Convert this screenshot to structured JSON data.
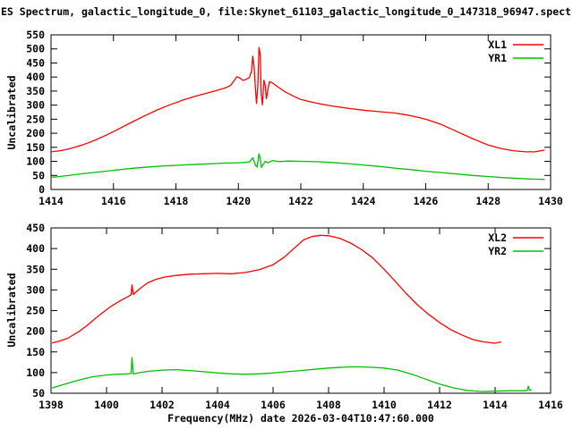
{
  "title": "ES Spectrum, galactic_longitude_0, file:Skynet_61103_galactic_longitude_0_147318_96947.spect",
  "xlabel": "Frequency(MHz) date 2026-03-04T10:47:60.000",
  "background_color": "#ffffff",
  "axis_color": "#000000",
  "chart_data": [
    {
      "type": "line",
      "ylabel": "Uncalibrated",
      "xlim": [
        1414,
        1430
      ],
      "ylim": [
        0,
        550
      ],
      "xticks": [
        1414,
        1416,
        1418,
        1420,
        1422,
        1424,
        1426,
        1428,
        1430
      ],
      "yticks": [
        0,
        50,
        100,
        150,
        200,
        250,
        300,
        350,
        400,
        450,
        500,
        550
      ],
      "grid": false,
      "legend_position": "top-right",
      "series": [
        {
          "name": "XL1",
          "color": "#ff0000",
          "points": [
            [
              1414.0,
              134
            ],
            [
              1414.3,
              138
            ],
            [
              1414.6,
              145
            ],
            [
              1415.0,
              158
            ],
            [
              1415.4,
              175
            ],
            [
              1415.8,
              195
            ],
            [
              1416.2,
              217
            ],
            [
              1416.6,
              240
            ],
            [
              1417.0,
              262
            ],
            [
              1417.4,
              283
            ],
            [
              1417.8,
              301
            ],
            [
              1418.2,
              317
            ],
            [
              1418.6,
              331
            ],
            [
              1419.0,
              343
            ],
            [
              1419.3,
              352
            ],
            [
              1419.6,
              362
            ],
            [
              1419.75,
              370
            ],
            [
              1419.85,
              385
            ],
            [
              1419.95,
              401
            ],
            [
              1420.05,
              396
            ],
            [
              1420.15,
              388
            ],
            [
              1420.25,
              392
            ],
            [
              1420.35,
              398
            ],
            [
              1420.42,
              420
            ],
            [
              1420.46,
              474
            ],
            [
              1420.5,
              440
            ],
            [
              1420.54,
              368
            ],
            [
              1420.58,
              306
            ],
            [
              1420.62,
              362
            ],
            [
              1420.66,
              505
            ],
            [
              1420.7,
              478
            ],
            [
              1420.73,
              340
            ],
            [
              1420.77,
              301
            ],
            [
              1420.82,
              389
            ],
            [
              1420.86,
              371
            ],
            [
              1420.9,
              323
            ],
            [
              1420.95,
              359
            ],
            [
              1421.0,
              384
            ],
            [
              1421.1,
              378
            ],
            [
              1421.3,
              362
            ],
            [
              1421.5,
              347
            ],
            [
              1421.8,
              330
            ],
            [
              1422.0,
              320
            ],
            [
              1422.3,
              312
            ],
            [
              1422.6,
              305
            ],
            [
              1423.0,
              297
            ],
            [
              1423.5,
              289
            ],
            [
              1424.0,
              282
            ],
            [
              1424.5,
              277
            ],
            [
              1425.0,
              272
            ],
            [
              1425.5,
              263
            ],
            [
              1426.0,
              250
            ],
            [
              1426.5,
              231
            ],
            [
              1427.0,
              206
            ],
            [
              1427.5,
              181
            ],
            [
              1428.0,
              158
            ],
            [
              1428.4,
              146
            ],
            [
              1428.8,
              138
            ],
            [
              1429.2,
              134
            ],
            [
              1429.5,
              134
            ],
            [
              1429.8,
              140
            ]
          ]
        },
        {
          "name": "YR1",
          "color": "#00c000",
          "points": [
            [
              1414.0,
              43
            ],
            [
              1414.5,
              49
            ],
            [
              1415.0,
              56
            ],
            [
              1415.5,
              62
            ],
            [
              1416.0,
              68
            ],
            [
              1416.5,
              74
            ],
            [
              1417.0,
              79
            ],
            [
              1417.5,
              83
            ],
            [
              1417.8,
              85
            ],
            [
              1418.1,
              86
            ],
            [
              1418.4,
              88
            ],
            [
              1418.8,
              90
            ],
            [
              1419.2,
              92
            ],
            [
              1419.6,
              94
            ],
            [
              1420.0,
              95
            ],
            [
              1420.2,
              96
            ],
            [
              1420.35,
              98
            ],
            [
              1420.42,
              107
            ],
            [
              1420.46,
              113
            ],
            [
              1420.5,
              101
            ],
            [
              1420.55,
              85
            ],
            [
              1420.6,
              80
            ],
            [
              1420.66,
              127
            ],
            [
              1420.7,
              109
            ],
            [
              1420.74,
              78
            ],
            [
              1420.8,
              90
            ],
            [
              1420.86,
              100
            ],
            [
              1420.95,
              95
            ],
            [
              1421.1,
              103
            ],
            [
              1421.3,
              99
            ],
            [
              1421.6,
              101
            ],
            [
              1422.0,
              100
            ],
            [
              1422.5,
              99
            ],
            [
              1423.0,
              96
            ],
            [
              1423.5,
              92
            ],
            [
              1424.0,
              87
            ],
            [
              1424.5,
              82
            ],
            [
              1425.0,
              76
            ],
            [
              1425.5,
              71
            ],
            [
              1426.0,
              65
            ],
            [
              1426.5,
              60
            ],
            [
              1427.0,
              55
            ],
            [
              1427.5,
              50
            ],
            [
              1428.0,
              46
            ],
            [
              1428.5,
              42
            ],
            [
              1429.0,
              39
            ],
            [
              1429.4,
              37
            ],
            [
              1429.8,
              36
            ]
          ]
        }
      ]
    },
    {
      "type": "line",
      "ylabel": "Uncalibrated",
      "xlim": [
        1398,
        1416
      ],
      "ylim": [
        50,
        450
      ],
      "xticks": [
        1398,
        1400,
        1402,
        1404,
        1406,
        1408,
        1410,
        1412,
        1414,
        1416
      ],
      "yticks": [
        50,
        100,
        150,
        200,
        250,
        300,
        350,
        400,
        450
      ],
      "grid": false,
      "legend_position": "top-right",
      "series": [
        {
          "name": "XL2",
          "color": "#ff0000",
          "points": [
            [
              1398.05,
              172
            ],
            [
              1398.3,
              176
            ],
            [
              1398.6,
              183
            ],
            [
              1399.0,
              199
            ],
            [
              1399.3,
              214
            ],
            [
              1399.6,
              231
            ],
            [
              1399.9,
              247
            ],
            [
              1400.2,
              262
            ],
            [
              1400.5,
              274
            ],
            [
              1400.8,
              285
            ],
            [
              1400.88,
              288
            ],
            [
              1400.92,
              312
            ],
            [
              1400.96,
              289
            ],
            [
              1401.2,
              303
            ],
            [
              1401.5,
              318
            ],
            [
              1401.8,
              326
            ],
            [
              1402.1,
              331
            ],
            [
              1402.5,
              335
            ],
            [
              1403.0,
              338
            ],
            [
              1403.5,
              339
            ],
            [
              1404.0,
              340
            ],
            [
              1404.5,
              339
            ],
            [
              1405.0,
              342
            ],
            [
              1405.5,
              349
            ],
            [
              1406.0,
              361
            ],
            [
              1406.4,
              379
            ],
            [
              1406.8,
              403
            ],
            [
              1407.1,
              421
            ],
            [
              1407.4,
              429
            ],
            [
              1407.7,
              432
            ],
            [
              1408.0,
              431
            ],
            [
              1408.4,
              425
            ],
            [
              1408.8,
              413
            ],
            [
              1409.2,
              397
            ],
            [
              1409.6,
              377
            ],
            [
              1410.0,
              350
            ],
            [
              1410.4,
              321
            ],
            [
              1410.8,
              291
            ],
            [
              1411.2,
              264
            ],
            [
              1411.6,
              241
            ],
            [
              1412.0,
              221
            ],
            [
              1412.4,
              204
            ],
            [
              1412.8,
              191
            ],
            [
              1413.2,
              180
            ],
            [
              1413.6,
              174
            ],
            [
              1414.0,
              171
            ],
            [
              1414.2,
              174
            ]
          ]
        },
        {
          "name": "YR2",
          "color": "#00c000",
          "points": [
            [
              1398.05,
              63
            ],
            [
              1398.5,
              72
            ],
            [
              1399.0,
              82
            ],
            [
              1399.5,
              90
            ],
            [
              1400.0,
              94
            ],
            [
              1400.4,
              96
            ],
            [
              1400.8,
              97
            ],
            [
              1400.88,
              98
            ],
            [
              1400.92,
              136
            ],
            [
              1400.96,
              97
            ],
            [
              1401.2,
              100
            ],
            [
              1401.5,
              103
            ],
            [
              1402.0,
              106
            ],
            [
              1402.5,
              107
            ],
            [
              1403.0,
              105
            ],
            [
              1403.5,
              102
            ],
            [
              1404.0,
              99
            ],
            [
              1404.5,
              97
            ],
            [
              1405.0,
              96
            ],
            [
              1405.5,
              97
            ],
            [
              1406.0,
              99
            ],
            [
              1406.5,
              102
            ],
            [
              1407.0,
              105
            ],
            [
              1407.5,
              108
            ],
            [
              1408.0,
              111
            ],
            [
              1408.5,
              113
            ],
            [
              1409.0,
              114
            ],
            [
              1409.5,
              113
            ],
            [
              1410.0,
              111
            ],
            [
              1410.5,
              106
            ],
            [
              1411.0,
              96
            ],
            [
              1411.5,
              84
            ],
            [
              1412.0,
              72
            ],
            [
              1412.5,
              63
            ],
            [
              1413.0,
              57
            ],
            [
              1413.5,
              54
            ],
            [
              1414.0,
              55
            ],
            [
              1414.5,
              56
            ],
            [
              1415.0,
              56
            ],
            [
              1415.15,
              57
            ],
            [
              1415.2,
              67
            ],
            [
              1415.24,
              57
            ],
            [
              1415.3,
              58
            ]
          ]
        }
      ]
    }
  ]
}
